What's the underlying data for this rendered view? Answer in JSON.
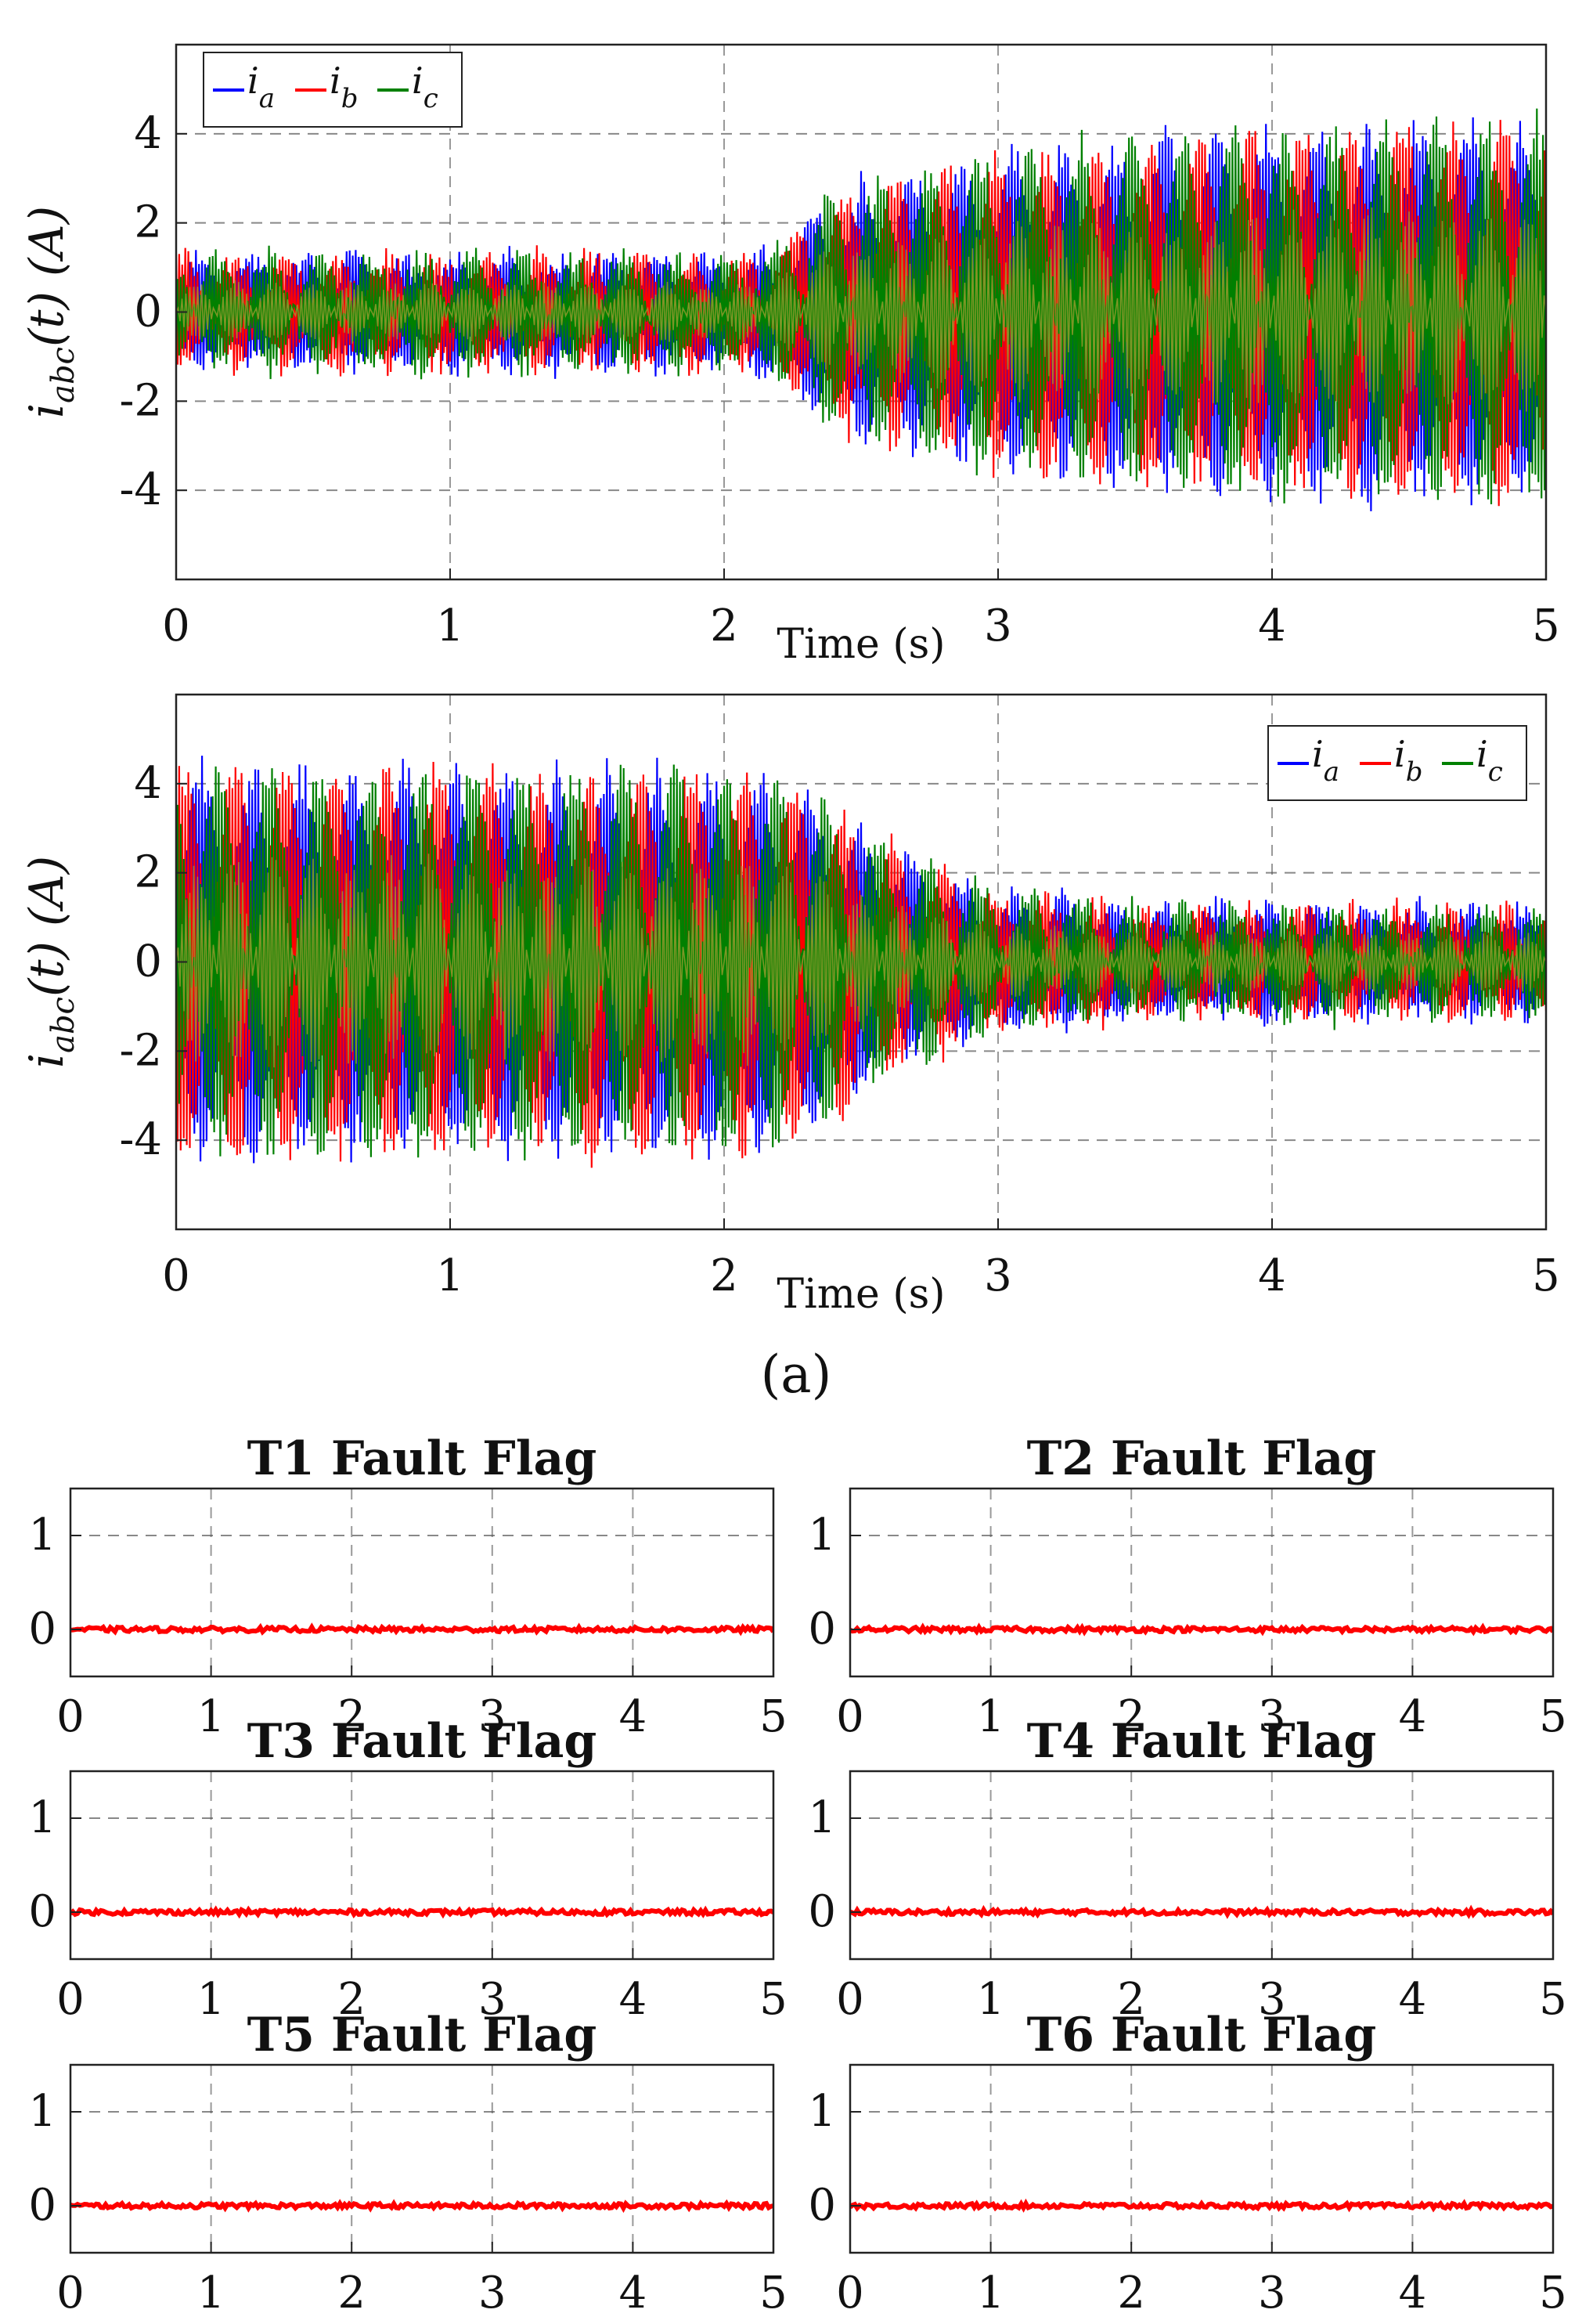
{
  "caption": "(a)",
  "chart_data": [
    {
      "type": "line",
      "panel": "current-top",
      "xlabel": "Time (s)",
      "ylabel": "i_abc(t) (A)",
      "xlim": [
        0,
        5
      ],
      "ylim": [
        -6,
        6
      ],
      "xticks": [
        0,
        1,
        2,
        3,
        4,
        5
      ],
      "yticks": [
        -4,
        -2,
        0,
        2,
        4
      ],
      "legend": {
        "placement": "top-left",
        "entries": [
          {
            "base": "i",
            "sub": "a"
          },
          {
            "base": "i",
            "sub": "b"
          },
          {
            "base": "i",
            "sub": "c"
          }
        ]
      },
      "series": [
        {
          "name": "i_a",
          "color": "#0000ff"
        },
        {
          "name": "i_b",
          "color": "#ff0000"
        },
        {
          "name": "i_c",
          "color": "#008000"
        }
      ],
      "envelope": {
        "t": [
          0,
          2.1,
          2.2,
          2.4,
          3.0,
          4.0,
          5.0
        ],
        "amp": [
          1.3,
          1.3,
          1.6,
          2.8,
          3.7,
          4.3,
          4.45
        ]
      }
    },
    {
      "type": "line",
      "panel": "current-bottom",
      "xlabel": "Time (s)",
      "ylabel": "i_abc(t) (A)",
      "xlim": [
        0,
        5
      ],
      "ylim": [
        -6,
        6
      ],
      "xticks": [
        0,
        1,
        2,
        3,
        4,
        5
      ],
      "yticks": [
        -4,
        -2,
        0,
        2,
        4
      ],
      "legend": {
        "placement": "top-right",
        "entries": [
          {
            "base": "i",
            "sub": "a"
          },
          {
            "base": "i",
            "sub": "b"
          },
          {
            "base": "i",
            "sub": "c"
          }
        ]
      },
      "series": [
        {
          "name": "i_a",
          "color": "#0000ff"
        },
        {
          "name": "i_b",
          "color": "#ff0000"
        },
        {
          "name": "i_c",
          "color": "#008000"
        }
      ],
      "envelope": {
        "t": [
          0,
          2.1,
          2.3,
          2.7,
          3.0,
          3.6,
          5.0
        ],
        "amp": [
          4.5,
          4.5,
          4.0,
          2.4,
          1.6,
          1.3,
          1.3
        ]
      }
    },
    {
      "type": "line",
      "title": "T1 Fault Flag",
      "xlim": [
        0,
        5
      ],
      "ylim": [
        -0.5,
        1.5
      ],
      "xticks": [
        0,
        1,
        2,
        3,
        4,
        5
      ],
      "yticks": [
        0,
        1
      ],
      "color": "#ff0000",
      "x": [
        0,
        5
      ],
      "y": [
        0,
        0
      ]
    },
    {
      "type": "line",
      "title": "T2 Fault Flag",
      "xlim": [
        0,
        5
      ],
      "ylim": [
        -0.5,
        1.5
      ],
      "xticks": [
        0,
        1,
        2,
        3,
        4,
        5
      ],
      "yticks": [
        0,
        1
      ],
      "color": "#ff0000",
      "x": [
        0,
        5
      ],
      "y": [
        0,
        0
      ]
    },
    {
      "type": "line",
      "title": "T3 Fault Flag",
      "xlim": [
        0,
        5
      ],
      "ylim": [
        -0.5,
        1.5
      ],
      "xticks": [
        0,
        1,
        2,
        3,
        4,
        5
      ],
      "yticks": [
        0,
        1
      ],
      "color": "#ff0000",
      "x": [
        0,
        5
      ],
      "y": [
        0,
        0
      ]
    },
    {
      "type": "line",
      "title": "T4 Fault Flag",
      "xlim": [
        0,
        5
      ],
      "ylim": [
        -0.5,
        1.5
      ],
      "xticks": [
        0,
        1,
        2,
        3,
        4,
        5
      ],
      "yticks": [
        0,
        1
      ],
      "color": "#ff0000",
      "x": [
        0,
        5
      ],
      "y": [
        0,
        0
      ]
    },
    {
      "type": "line",
      "title": "T5 Fault Flag",
      "xlim": [
        0,
        5
      ],
      "ylim": [
        -0.5,
        1.5
      ],
      "xticks": [
        0,
        1,
        2,
        3,
        4,
        5
      ],
      "yticks": [
        0,
        1
      ],
      "color": "#ff0000",
      "x": [
        0,
        5
      ],
      "y": [
        0,
        0
      ]
    },
    {
      "type": "line",
      "title": "T6 Fault Flag",
      "xlim": [
        0,
        5
      ],
      "ylim": [
        -0.5,
        1.5
      ],
      "xticks": [
        0,
        1,
        2,
        3,
        4,
        5
      ],
      "yticks": [
        0,
        1
      ],
      "color": "#ff0000",
      "x": [
        0,
        5
      ],
      "y": [
        0,
        0
      ]
    }
  ]
}
